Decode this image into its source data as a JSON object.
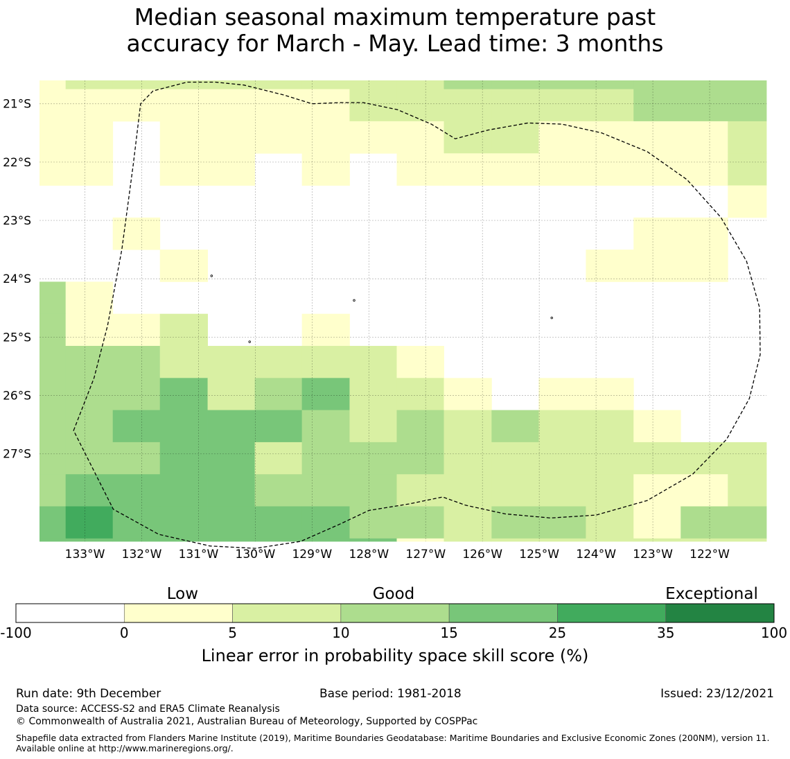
{
  "title_line1": "Median seasonal maximum temperature past",
  "title_line2": "accuracy for March - May. Lead time: 3 months",
  "chart_data": {
    "type": "heatmap",
    "title": "Median seasonal maximum temperature past accuracy for March - May. Lead time: 3 months",
    "x_ticks": [
      "133°W",
      "132°W",
      "131°W",
      "130°W",
      "129°W",
      "128°W",
      "127°W",
      "126°W",
      "125°W",
      "124°W",
      "123°W",
      "122°W"
    ],
    "y_ticks": [
      "21°S",
      "22°S",
      "23°S",
      "24°S",
      "25°S",
      "26°S",
      "27°S"
    ],
    "grid_note": "Cells are 0.833° wide, rows 0.55° tall; values are skill-score class indices (0: -100 to 0, 1: 0-5, 2: 5-10, 3: 10-15, 4: 15-25, 5: 25-35, 6: 35-100)",
    "x_range": [
      -133.8,
      -121.0
    ],
    "y_range": [
      -28.5,
      -20.6
    ],
    "categories_col_edges_deg": [
      -133.8,
      -133.34,
      -132.51,
      -131.68,
      -130.84,
      -130.01,
      -129.18,
      -128.34,
      -127.51,
      -126.68,
      -125.84,
      -125.01,
      -124.18,
      -123.34,
      -122.51,
      -121.68,
      -121.0
    ],
    "row_top_lat": -20.6,
    "row_step_lat": 0.55,
    "row_first_step_lat": 0.15,
    "rows": [
      [
        1,
        2,
        2,
        2,
        2,
        2,
        2,
        2,
        2,
        3,
        3,
        3,
        3,
        3,
        3,
        3
      ],
      [
        1,
        1,
        1,
        1,
        1,
        1,
        1,
        2,
        2,
        2,
        2,
        2,
        2,
        3,
        3,
        3
      ],
      [
        1,
        1,
        0,
        1,
        1,
        1,
        1,
        1,
        1,
        2,
        2,
        1,
        1,
        1,
        1,
        2
      ],
      [
        1,
        1,
        0,
        1,
        1,
        0,
        1,
        0,
        1,
        1,
        1,
        1,
        1,
        1,
        1,
        2
      ],
      [
        0,
        0,
        0,
        0,
        0,
        0,
        0,
        0,
        0,
        0,
        0,
        0,
        0,
        0,
        0,
        1
      ],
      [
        0,
        0,
        1,
        0,
        0,
        0,
        0,
        0,
        0,
        0,
        0,
        0,
        0,
        1,
        1,
        0
      ],
      [
        0,
        0,
        0,
        1,
        0,
        0,
        0,
        0,
        0,
        0,
        0,
        0,
        1,
        1,
        1,
        0
      ],
      [
        3,
        1,
        0,
        0,
        0,
        0,
        0,
        0,
        0,
        0,
        0,
        0,
        0,
        0,
        0,
        0
      ],
      [
        3,
        1,
        1,
        2,
        0,
        0,
        1,
        0,
        0,
        0,
        0,
        0,
        0,
        0,
        0,
        0
      ],
      [
        3,
        3,
        3,
        2,
        2,
        2,
        2,
        2,
        1,
        0,
        0,
        0,
        0,
        0,
        0,
        0
      ],
      [
        3,
        3,
        3,
        4,
        2,
        3,
        4,
        2,
        2,
        1,
        0,
        1,
        1,
        0,
        0,
        0
      ],
      [
        3,
        3,
        4,
        4,
        4,
        4,
        3,
        2,
        3,
        2,
        3,
        2,
        2,
        1,
        0,
        0
      ],
      [
        3,
        3,
        3,
        4,
        4,
        2,
        3,
        3,
        3,
        2,
        2,
        2,
        2,
        2,
        2,
        2
      ],
      [
        3,
        4,
        4,
        4,
        4,
        3,
        3,
        3,
        2,
        2,
        2,
        2,
        2,
        1,
        1,
        2
      ],
      [
        4,
        5,
        4,
        4,
        4,
        4,
        4,
        3,
        3,
        2,
        3,
        3,
        2,
        1,
        3,
        3
      ],
      [
        4,
        4,
        4,
        4,
        4,
        4,
        4,
        4,
        1,
        2,
        2,
        2,
        2,
        2,
        2,
        2
      ]
    ],
    "colorbar": {
      "labels": [
        "-100",
        "0",
        "5",
        "10",
        "15",
        "25",
        "35",
        "100"
      ],
      "colors": [
        "#ffffff",
        "#ffffcc",
        "#d9f0a3",
        "#addd8e",
        "#78c679",
        "#41ab5d",
        "#238443"
      ],
      "categories": [
        "Low",
        "Good",
        "Exceptional"
      ],
      "xlabel": "Linear error in probability space skill score (%)"
    },
    "outline": {
      "style": "dashed",
      "lon_lat_points": [
        [
          -133.2,
          -26.6
        ],
        [
          -132.84,
          -25.7
        ],
        [
          -132.6,
          -24.8
        ],
        [
          -132.35,
          -23.5
        ],
        [
          -132.15,
          -22.05
        ],
        [
          -132.02,
          -21.0
        ],
        [
          -131.8,
          -20.78
        ],
        [
          -131.2,
          -20.63
        ],
        [
          -130.7,
          -20.63
        ],
        [
          -130.2,
          -20.68
        ],
        [
          -129.5,
          -20.85
        ],
        [
          -129.0,
          -21.0
        ],
        [
          -128.5,
          -20.98
        ],
        [
          -128.1,
          -20.98
        ],
        [
          -127.5,
          -21.1
        ],
        [
          -126.9,
          -21.35
        ],
        [
          -126.48,
          -21.6
        ],
        [
          -125.9,
          -21.45
        ],
        [
          -125.2,
          -21.33
        ],
        [
          -124.6,
          -21.35
        ],
        [
          -123.9,
          -21.5
        ],
        [
          -123.1,
          -21.82
        ],
        [
          -122.4,
          -22.3
        ],
        [
          -121.8,
          -22.95
        ],
        [
          -121.35,
          -23.7
        ],
        [
          -121.12,
          -24.5
        ],
        [
          -121.11,
          -25.3
        ],
        [
          -121.3,
          -26.05
        ],
        [
          -121.7,
          -26.75
        ],
        [
          -122.3,
          -27.35
        ],
        [
          -123.1,
          -27.8
        ],
        [
          -124.0,
          -28.05
        ],
        [
          -124.8,
          -28.1
        ],
        [
          -125.6,
          -28.03
        ],
        [
          -126.3,
          -27.88
        ],
        [
          -126.7,
          -27.74
        ],
        [
          -127.3,
          -27.86
        ],
        [
          -128.0,
          -27.97
        ],
        [
          -128.5,
          -28.2
        ],
        [
          -129.2,
          -28.5
        ],
        [
          -130.0,
          -28.62
        ],
        [
          -130.8,
          -28.58
        ],
        [
          -131.7,
          -28.38
        ],
        [
          -132.5,
          -27.95
        ],
        [
          -133.2,
          -26.6
        ]
      ]
    },
    "islands": [
      [
        -130.77,
        -23.95
      ],
      [
        -128.26,
        -24.37
      ],
      [
        -124.78,
        -24.67
      ],
      [
        -130.1,
        -25.08
      ]
    ]
  },
  "footer": {
    "run_date": "Run date: 9th December",
    "base_period": "Base period: 1981-2018",
    "issued": "Issued: 23/12/2021",
    "data_source": "Data source: ACCESS-S2 and ERA5 Climate Reanalysis",
    "copyright": "© Commonwealth of Australia 2021, Australian Bureau of Meteorology, Supported by COSPPac",
    "shapefile": "Shapefile data extracted from Flanders Marine Institute (2019), Maritime Boundaries Geodatabase: Maritime Boundaries and Exclusive Economic Zones (200NM), version 11. Available online at http://www.marineregions.org/."
  }
}
